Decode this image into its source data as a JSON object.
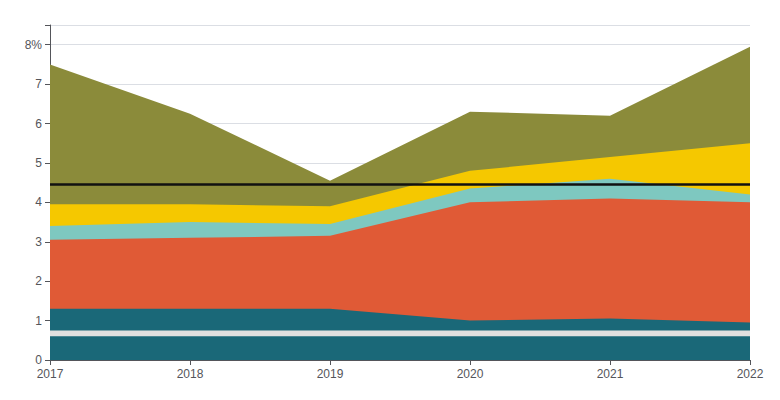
{
  "chart_data": {
    "type": "area",
    "stacked": true,
    "x": [
      2017,
      2018,
      2019,
      2020,
      2021,
      2022
    ],
    "series": [
      {
        "color": "#1a6878",
        "values": [
          0.6,
          0.6,
          0.6,
          0.6,
          0.6,
          0.6
        ]
      },
      {
        "color": "#e0e0e0",
        "values": [
          0.15,
          0.15,
          0.15,
          0.15,
          0.15,
          0.15
        ]
      },
      {
        "color": "#1a6878",
        "values": [
          0.55,
          0.55,
          0.55,
          0.25,
          0.3,
          0.2
        ]
      },
      {
        "color": "#e05a36",
        "values": [
          1.75,
          1.8,
          1.85,
          3.0,
          3.05,
          3.05
        ]
      },
      {
        "color": "#7ec8c0",
        "values": [
          0.35,
          0.4,
          0.3,
          0.35,
          0.5,
          0.2
        ]
      },
      {
        "color": "#f5c800",
        "values": [
          0.55,
          0.45,
          0.45,
          0.45,
          0.55,
          1.3
        ]
      },
      {
        "color": "#8b8b3a",
        "values": [
          3.55,
          2.3,
          0.65,
          1.5,
          1.05,
          2.45
        ]
      }
    ],
    "reference_line": {
      "y": 4.45,
      "color": "#111111"
    },
    "xlim": [
      2017,
      2022
    ],
    "xticks": [
      2017,
      2018,
      2019,
      2020,
      2021,
      2022
    ],
    "ylim": [
      0,
      8.5
    ],
    "yticks": [
      0,
      1,
      2,
      3,
      4,
      5,
      6,
      7,
      {
        "value": 8,
        "label": "8%"
      }
    ],
    "grid": true
  }
}
